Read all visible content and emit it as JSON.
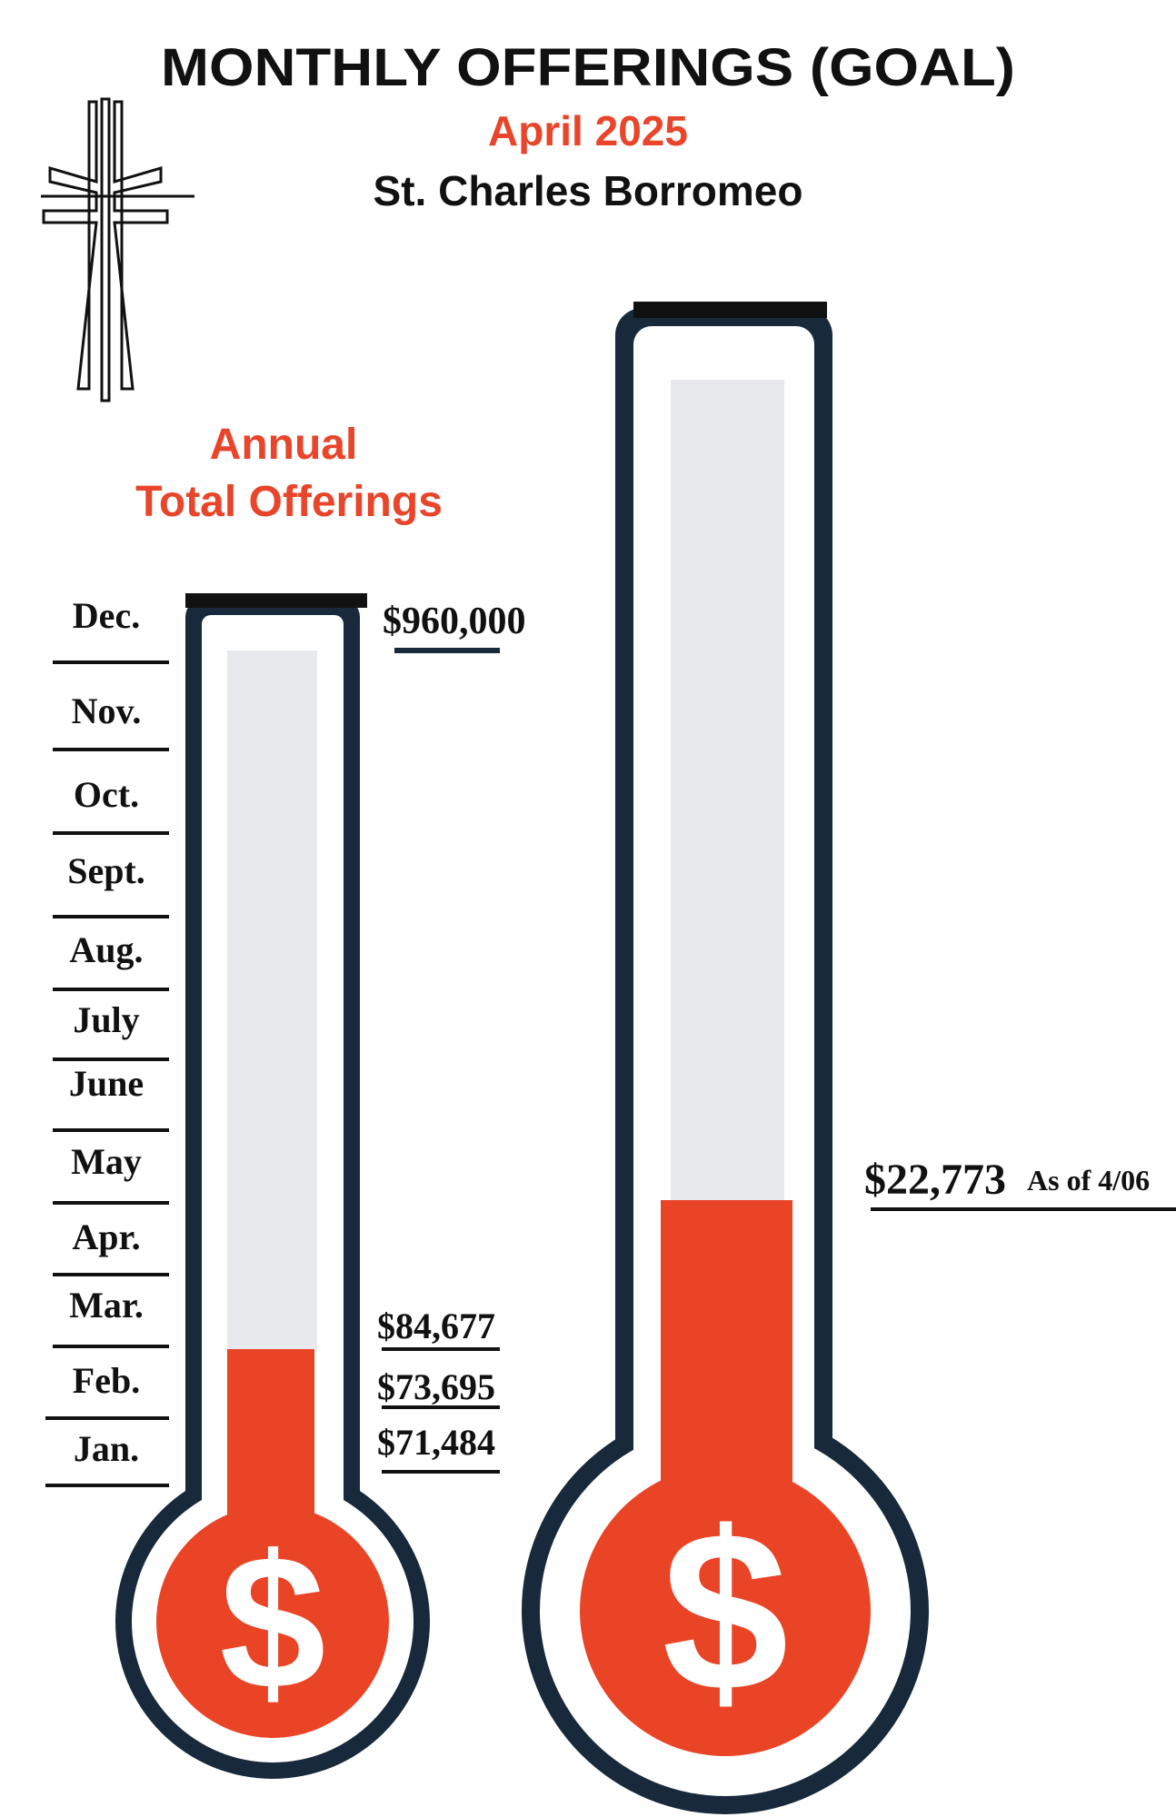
{
  "header": {
    "title": "MONTHLY OFFERINGS (GOAL)",
    "subtitle": "April 2025",
    "parish": "St. Charles Borromeo"
  },
  "annual": {
    "heading": [
      "Annual",
      "Total Offerings"
    ],
    "months": [
      "Dec.",
      "Nov.",
      "Oct.",
      "Sept.",
      "Aug.",
      "July",
      "June",
      "May",
      "Apr.",
      "Mar.",
      "Feb.",
      "Jan."
    ],
    "goal": "$960,000",
    "amounts": [
      "$84,677",
      "$73,695",
      "$71,484"
    ]
  },
  "monthly": {
    "amount": "$22,773",
    "note": "As of 4/06"
  }
}
